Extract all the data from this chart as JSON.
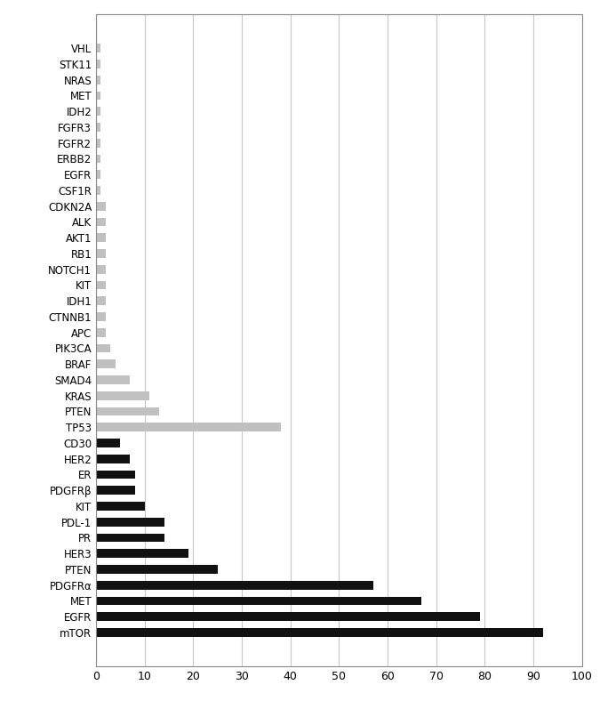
{
  "categories": [
    "VHL",
    "STK11",
    "NRAS",
    "MET",
    "IDH2",
    "FGFR3",
    "FGFR2",
    "ERBB2",
    "EGFR",
    "CSF1R",
    "CDKN2A",
    "ALK",
    "AKT1",
    "RB1",
    "NOTCH1",
    "KIT",
    "IDH1",
    "CTNNB1",
    "APC",
    "PIK3CA",
    "BRAF",
    "SMAD4",
    "KRAS",
    "PTEN",
    "TP53",
    "CD30",
    "HER2",
    "ER",
    "PDGFRβ",
    "KIT ",
    "PDL-1",
    "PR",
    "HER3",
    "PTEN ",
    "PDGFRα",
    "MET ",
    "EGFR ",
    "mTOR"
  ],
  "values": [
    1,
    1,
    1,
    1,
    1,
    1,
    1,
    1,
    1,
    1,
    2,
    2,
    2,
    2,
    2,
    2,
    2,
    2,
    2,
    3,
    4,
    7,
    11,
    13,
    38,
    5,
    7,
    8,
    8,
    10,
    14,
    14,
    19,
    25,
    57,
    67,
    79,
    92
  ],
  "colors": [
    "#c0c0c0",
    "#c0c0c0",
    "#c0c0c0",
    "#c0c0c0",
    "#c0c0c0",
    "#c0c0c0",
    "#c0c0c0",
    "#c0c0c0",
    "#c0c0c0",
    "#c0c0c0",
    "#c0c0c0",
    "#c0c0c0",
    "#c0c0c0",
    "#c0c0c0",
    "#c0c0c0",
    "#c0c0c0",
    "#c0c0c0",
    "#c0c0c0",
    "#c0c0c0",
    "#c0c0c0",
    "#c0c0c0",
    "#c0c0c0",
    "#c0c0c0",
    "#c0c0c0",
    "#c0c0c0",
    "#111111",
    "#111111",
    "#111111",
    "#111111",
    "#111111",
    "#111111",
    "#111111",
    "#111111",
    "#111111",
    "#111111",
    "#111111",
    "#111111",
    "#111111"
  ],
  "xlim": [
    0,
    100
  ],
  "xticks": [
    0,
    10,
    20,
    30,
    40,
    50,
    60,
    70,
    80,
    90,
    100
  ],
  "background_color": "#ffffff",
  "grid_color": "#c8c8c8",
  "bar_height": 0.55,
  "label_fontsize": 8.5,
  "tick_fontsize": 9
}
